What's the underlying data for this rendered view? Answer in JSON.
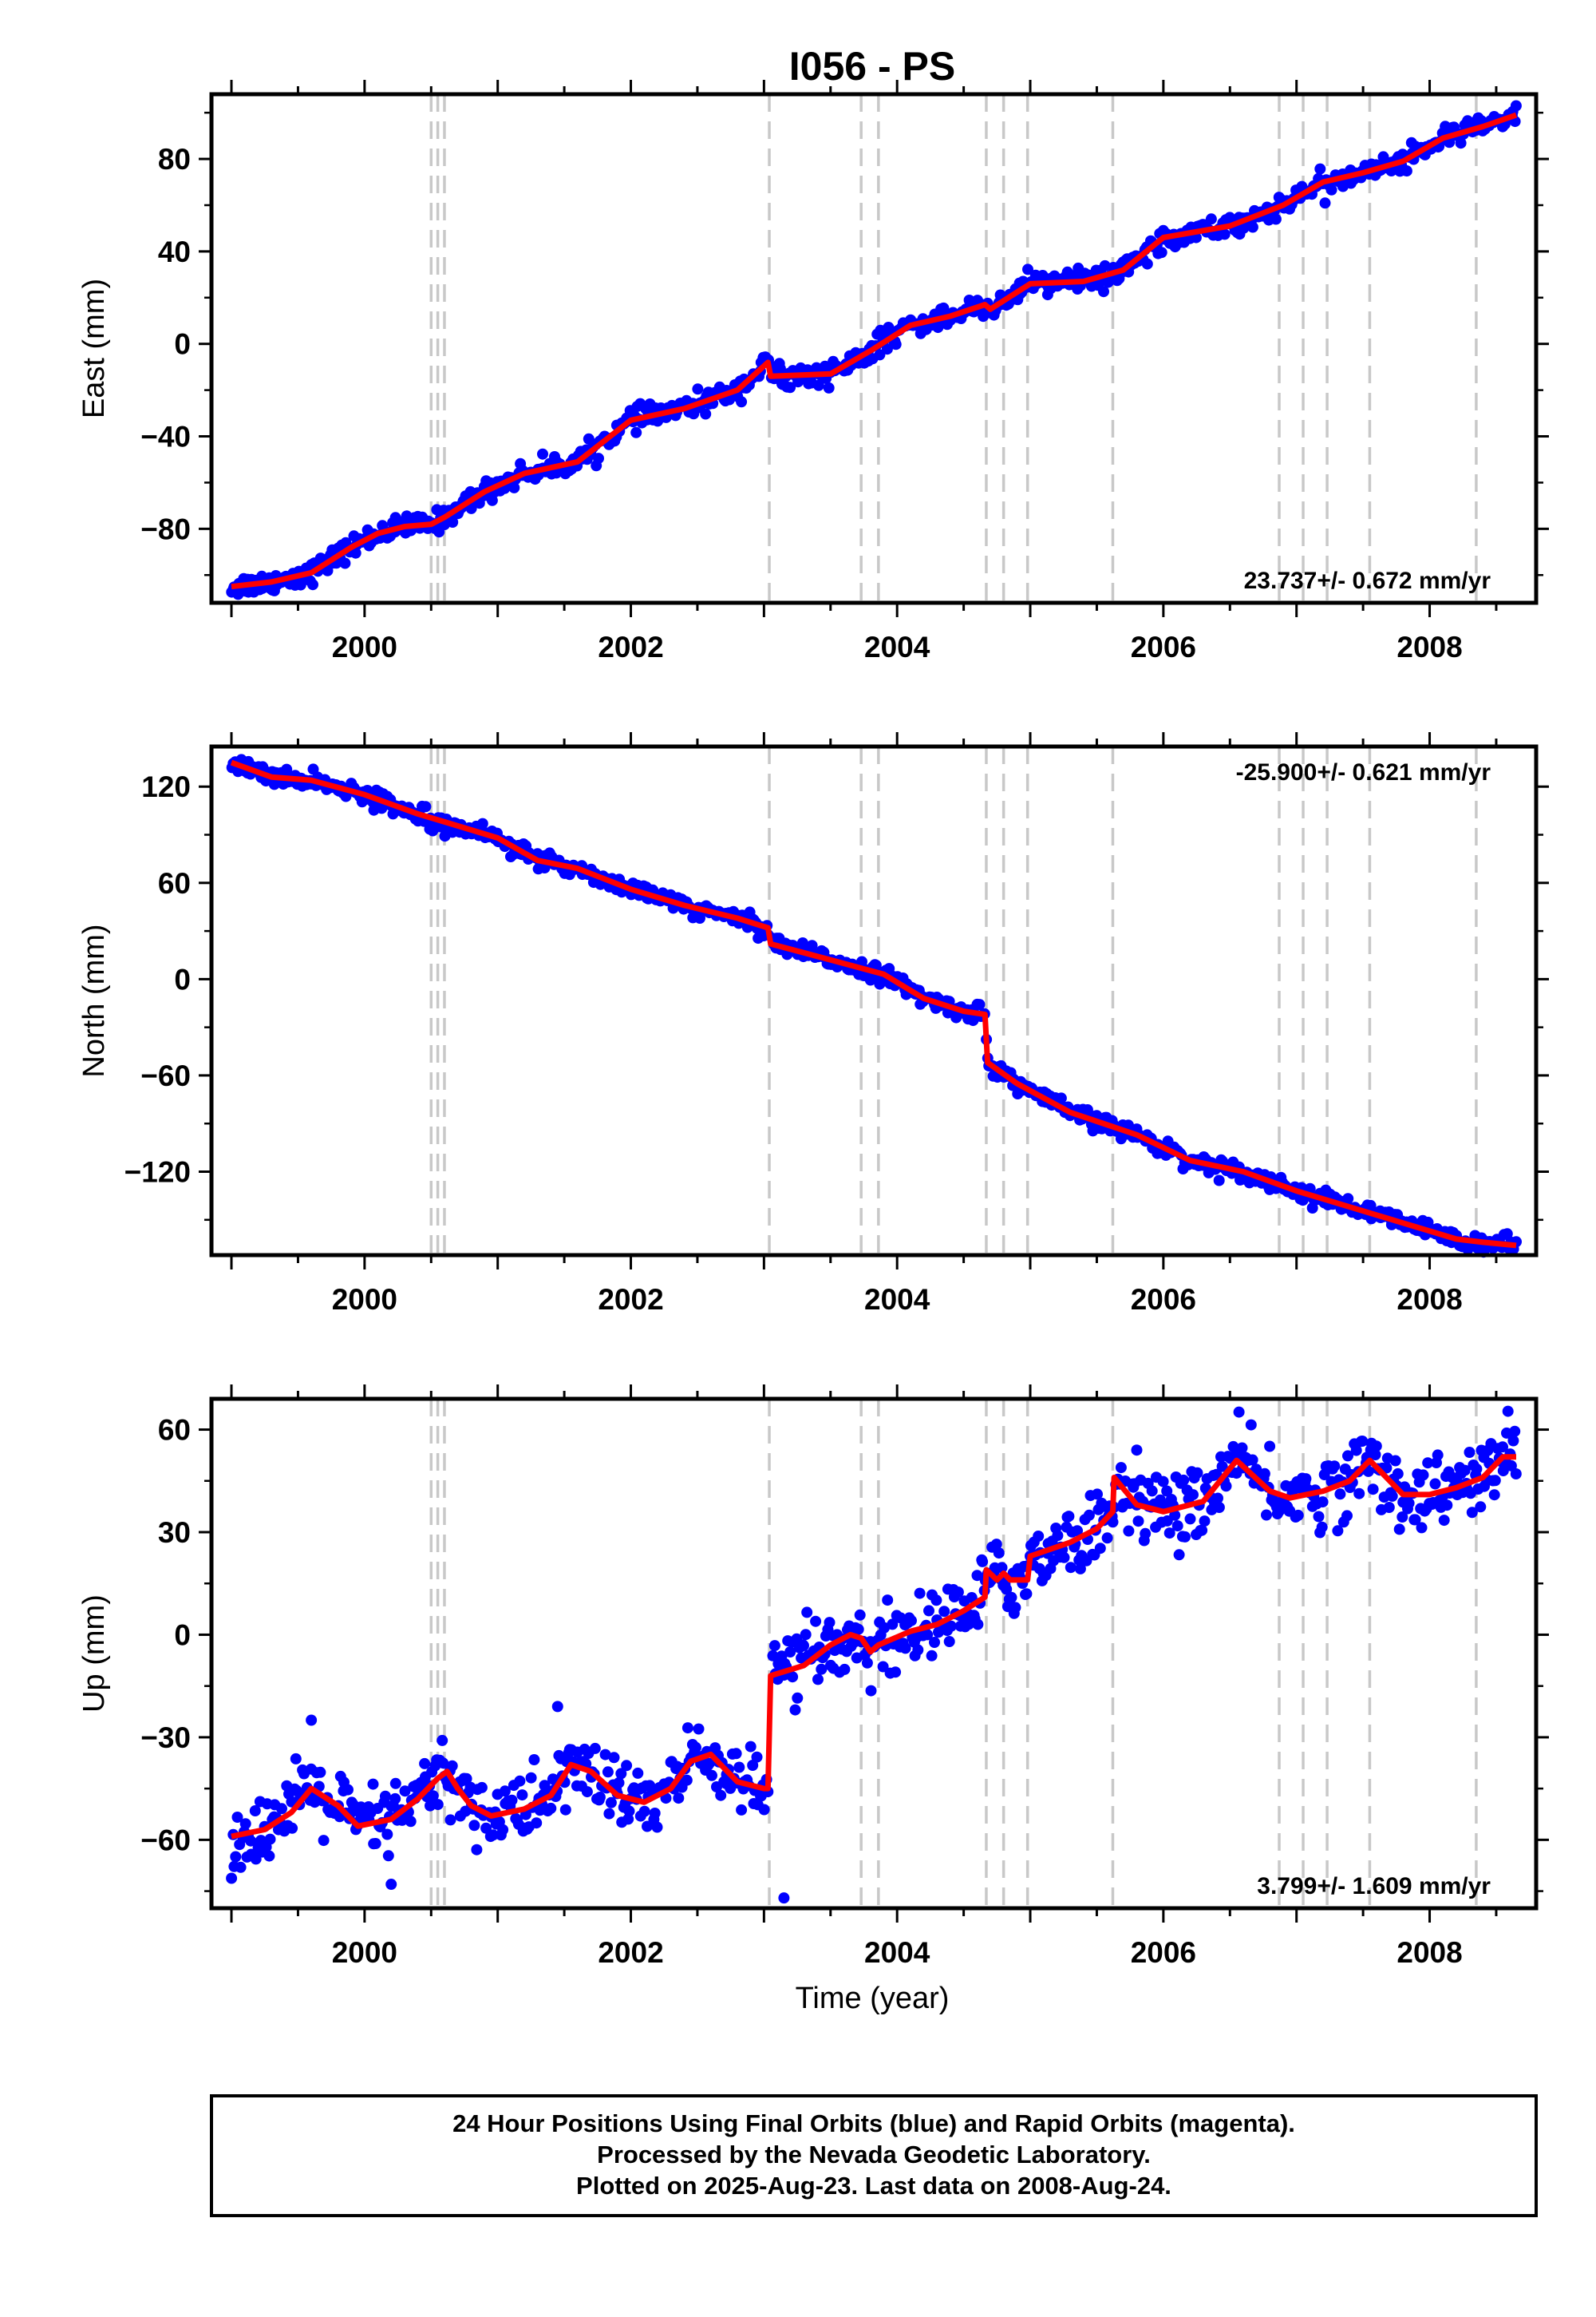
{
  "title": "I056 - PS",
  "xlabel": "Time (year)",
  "footer": {
    "line1": "24 Hour Positions Using Final Orbits (blue) and Rapid Orbits (magenta).",
    "line2": "Processed by the Nevada Geodetic Laboratory.",
    "line3": "Plotted on 2025-Aug-23. Last data on 2008-Aug-24."
  },
  "colors": {
    "points": "#0000ff",
    "model": "#ff0000",
    "events": "#c8c8c8",
    "frame": "#000000"
  },
  "chart_data": [
    {
      "type": "scatter",
      "component": "east",
      "ylabel": "East (mm)",
      "rate": "23.737+/- 0.672 mm/yr",
      "rate_position": "bottom-right",
      "xlim": [
        1998.85,
        2008.8
      ],
      "ylim": [
        -112,
        108
      ],
      "yticks": [
        -80,
        -40,
        0,
        40,
        80
      ],
      "xticks": [
        2000,
        2002,
        2004,
        2006,
        2008
      ],
      "grid": false,
      "event_lines": [
        2000.5,
        2000.55,
        2000.6,
        2003.04,
        2003.73,
        2003.86,
        2004.67,
        2004.8,
        2004.98,
        2005.62,
        2006.87,
        2007.05,
        2007.23,
        2007.55,
        2008.35
      ],
      "model": {
        "x": [
          1999.0,
          1999.3,
          1999.6,
          1999.9,
          2000.1,
          2000.3,
          2000.5,
          2000.6,
          2000.9,
          2001.2,
          2001.6,
          2002.0,
          2002.4,
          2002.8,
          2003.03,
          2003.05,
          2003.5,
          2003.8,
          2004.1,
          2004.4,
          2004.66,
          2004.7,
          2005.0,
          2005.4,
          2005.7,
          2006.0,
          2006.5,
          2006.9,
          2007.2,
          2007.5,
          2007.8,
          2008.1,
          2008.4,
          2008.65
        ],
        "y": [
          -105,
          -103,
          -99,
          -88,
          -82,
          -79,
          -78,
          -75,
          -64,
          -56,
          -51,
          -33,
          -28,
          -20,
          -8,
          -14,
          -13,
          -3,
          8,
          12,
          17,
          15,
          26,
          27,
          32,
          46,
          51,
          60,
          70,
          74,
          79,
          89,
          94,
          99
        ]
      },
      "scatter": {
        "start": 1999.0,
        "end": 2008.65,
        "noise": 2.3,
        "outliers": []
      }
    },
    {
      "type": "scatter",
      "component": "north",
      "ylabel": "North (mm)",
      "rate": "-25.900+/- 0.621 mm/yr",
      "rate_position": "top-right",
      "xlim": [
        1998.85,
        2008.8
      ],
      "ylim": [
        -172,
        145
      ],
      "yticks": [
        -120,
        -60,
        0,
        60,
        120
      ],
      "xticks": [
        2000,
        2002,
        2004,
        2006,
        2008
      ],
      "grid": false,
      "event_lines": [
        2000.5,
        2000.55,
        2000.6,
        2003.04,
        2003.73,
        2003.86,
        2004.67,
        2004.8,
        2004.98,
        2005.62,
        2006.87,
        2007.05,
        2007.23,
        2007.55,
        2008.35
      ],
      "model": {
        "x": [
          1999.0,
          1999.3,
          1999.6,
          2000.0,
          2000.4,
          2000.6,
          2001.0,
          2001.3,
          2001.6,
          2002.0,
          2002.4,
          2002.8,
          2003.03,
          2003.05,
          2003.5,
          2003.9,
          2004.2,
          2004.5,
          2004.66,
          2004.68,
          2004.9,
          2005.3,
          2005.8,
          2006.2,
          2006.6,
          2007.0,
          2007.4,
          2007.8,
          2008.2,
          2008.4,
          2008.65
        ],
        "y": [
          135,
          126,
          124,
          115,
          103,
          98,
          88,
          74,
          69,
          56,
          46,
          38,
          32,
          22,
          12,
          3,
          -12,
          -20,
          -22,
          -52,
          -65,
          -83,
          -97,
          -113,
          -120,
          -132,
          -142,
          -152,
          -162,
          -164,
          -166
        ]
      },
      "scatter": {
        "start": 1999.0,
        "end": 2008.65,
        "noise": 2.6,
        "outliers": []
      }
    },
    {
      "type": "scatter",
      "component": "up",
      "ylabel": "Up (mm)",
      "rate": "3.799+/- 1.609 mm/yr",
      "rate_position": "bottom-right",
      "xlim": [
        1998.85,
        2008.8
      ],
      "ylim": [
        -80,
        69
      ],
      "yticks": [
        -60,
        -30,
        0,
        30,
        60
      ],
      "xticks": [
        2000,
        2002,
        2004,
        2006,
        2008
      ],
      "grid": false,
      "event_lines": [
        2000.5,
        2000.55,
        2000.6,
        2003.04,
        2003.73,
        2003.86,
        2004.67,
        2004.8,
        2004.98,
        2005.62,
        2006.87,
        2007.05,
        2007.23,
        2007.55,
        2008.35
      ],
      "model": {
        "x": [
          1999.0,
          1999.25,
          1999.45,
          1999.6,
          1999.8,
          1999.95,
          2000.2,
          2000.4,
          2000.55,
          2000.62,
          2000.7,
          2000.8,
          2000.95,
          2001.2,
          2001.4,
          2001.55,
          2001.7,
          2001.9,
          2002.1,
          2002.3,
          2002.45,
          2002.6,
          2002.8,
          2003.0,
          2003.03,
          2003.05,
          2003.3,
          2003.5,
          2003.65,
          2003.73,
          2003.8,
          2003.86,
          2004.1,
          2004.3,
          2004.5,
          2004.66,
          2004.67,
          2004.75,
          2004.8,
          2004.85,
          2004.98,
          2005.0,
          2005.3,
          2005.5,
          2005.62,
          2005.63,
          2005.8,
          2006.0,
          2006.3,
          2006.55,
          2006.8,
          2006.95,
          2007.2,
          2007.4,
          2007.55,
          2007.8,
          2008.0,
          2008.2,
          2008.4,
          2008.55,
          2008.65
        ],
        "y": [
          -59,
          -57,
          -52,
          -45,
          -50,
          -56,
          -54,
          -48,
          -42,
          -40,
          -45,
          -50,
          -53,
          -51,
          -47,
          -38,
          -40,
          -47,
          -49,
          -45,
          -37,
          -35,
          -43,
          -45,
          -45,
          -12,
          -9,
          -3,
          0,
          -1,
          -5,
          -3,
          1,
          3,
          7,
          11,
          19,
          16,
          18,
          16,
          16,
          23,
          27,
          31,
          36,
          46,
          38,
          36,
          39,
          51,
          42,
          40,
          42,
          45,
          51,
          41,
          41,
          43,
          46,
          52,
          52
        ]
      },
      "scatter": {
        "start": 1999.0,
        "end": 2008.65,
        "noise": 5.2,
        "outliers": [
          [
            2003.15,
            -77
          ],
          [
            1999.6,
            -25
          ],
          [
            2000.2,
            -73
          ],
          [
            2001.45,
            -21
          ],
          [
            2005.8,
            54
          ]
        ]
      }
    }
  ]
}
